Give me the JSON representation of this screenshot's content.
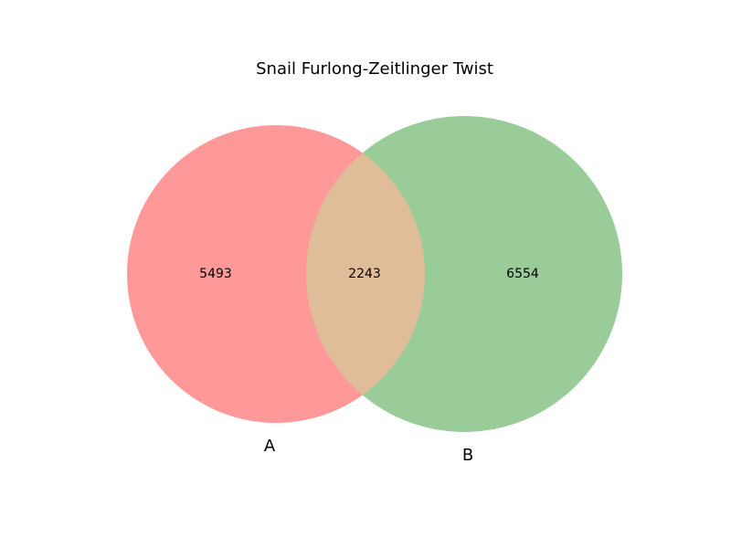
{
  "title": "Snail Furlong-Zeitlinger Twist",
  "sets": [
    {
      "label": "A",
      "only_count": "5493",
      "color": "#ff9999"
    },
    {
      "label": "B",
      "only_count": "6554",
      "color": "#99cc99"
    }
  ],
  "intersection": {
    "count": "2243",
    "color": "#e0bd99"
  }
}
